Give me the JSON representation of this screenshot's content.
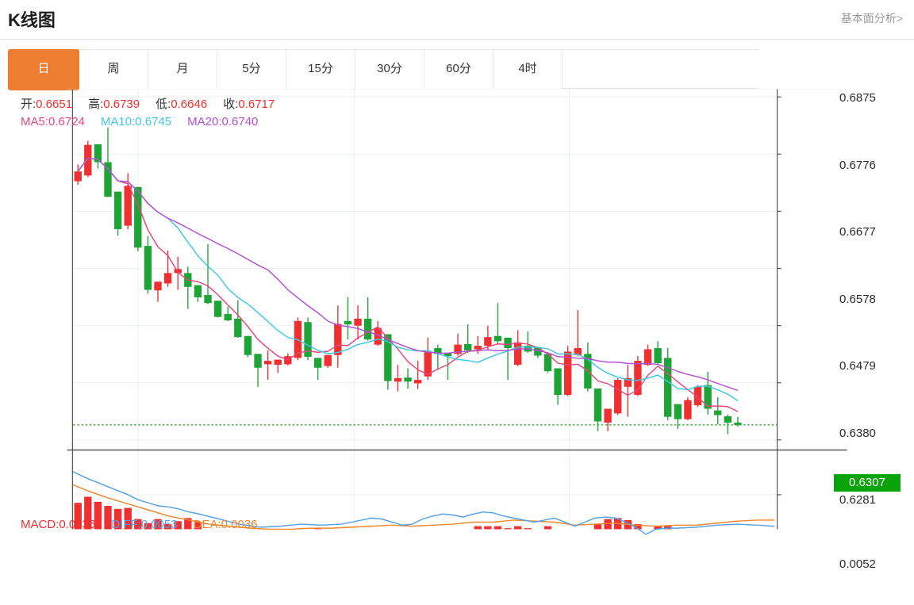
{
  "page": {
    "title": "K线图",
    "link_label": "基本面分析>"
  },
  "tabs": {
    "items": [
      "日",
      "周",
      "月",
      "5分",
      "15分",
      "30分",
      "60分",
      "4时"
    ],
    "selected_index": 0
  },
  "colors": {
    "tab_selected": "#ed7d31",
    "up_candle": "#ee3130",
    "down_candle": "#1ea436",
    "ma5": "#e9467f",
    "ma10": "#3fc8e4",
    "ma20": "#b44fd4",
    "diff_line": "#55a1e8",
    "dea_line": "#f0862d",
    "hist_bar": "#ee3130",
    "current_line": "#21a321",
    "badge_bg": "#0aa30a",
    "value_red": "#f22e2e",
    "grid": "#e9eef4",
    "frame": "#555555"
  },
  "legend": {
    "ohlc": [
      {
        "label": "开:",
        "value": "0.6651"
      },
      {
        "label": "高:",
        "value": "0.6739"
      },
      {
        "label": "低:",
        "value": "0.6646"
      },
      {
        "label": "收:",
        "value": "0.6717"
      }
    ],
    "ma": [
      {
        "label": "MA5:",
        "value": "0.6724",
        "color": "#e9467f"
      },
      {
        "label": "MA10:",
        "value": "0.6745",
        "color": "#3fc8e4"
      },
      {
        "label": "MA20:",
        "value": "0.6740",
        "color": "#b44fd4"
      }
    ],
    "macd": [
      {
        "label": "MACD:",
        "value": "0.0036",
        "color": "#f22e2e"
      },
      {
        "label": "DIFF:",
        "value": "0.0053",
        "color": "#55a1e8"
      },
      {
        "label": "DEA:",
        "value": "0.0036",
        "color": "#f0862d"
      }
    ]
  },
  "chart_data": {
    "type": "candlestick+macd",
    "main": {
      "title": "K线图 daily candlesticks with MA5/MA10/MA20 overlays",
      "y_ticks": [
        "0.6875",
        "0.6776",
        "0.6677",
        "0.6578",
        "0.6479",
        "0.6380",
        "0.6281"
      ],
      "axis_top_price": 0.6875,
      "axis_tick_step": 0.0099,
      "current_price": "0.6307",
      "ma_periods": [
        5,
        10,
        20
      ],
      "candles_ohlc": [
        [
          0.6729,
          0.6758,
          0.6723,
          0.6746
        ],
        [
          0.6739,
          0.6799,
          0.6736,
          0.6792
        ],
        [
          0.6793,
          0.6793,
          0.6751,
          0.6762
        ],
        [
          0.6762,
          0.6822,
          0.6702,
          0.6702
        ],
        [
          0.6711,
          0.6711,
          0.6635,
          0.6646
        ],
        [
          0.6652,
          0.6743,
          0.6646,
          0.6721
        ],
        [
          0.6719,
          0.6719,
          0.6608,
          0.6614
        ],
        [
          0.6617,
          0.6634,
          0.6534,
          0.6541
        ],
        [
          0.654,
          0.6555,
          0.652,
          0.6555
        ],
        [
          0.6552,
          0.6609,
          0.6546,
          0.657
        ],
        [
          0.657,
          0.6598,
          0.6541,
          0.6577
        ],
        [
          0.657,
          0.6581,
          0.6508,
          0.6546
        ],
        [
          0.6549,
          0.6549,
          0.652,
          0.6528
        ],
        [
          0.6532,
          0.662,
          0.6516,
          0.6518
        ],
        [
          0.6522,
          0.6522,
          0.6493,
          0.6494
        ],
        [
          0.6499,
          0.6512,
          0.6487,
          0.6488
        ],
        [
          0.6491,
          0.6523,
          0.6458,
          0.6459
        ],
        [
          0.6461,
          0.6461,
          0.6424,
          0.6428
        ],
        [
          0.643,
          0.643,
          0.6373,
          0.6406
        ],
        [
          0.6412,
          0.6436,
          0.6385,
          0.6418
        ],
        [
          0.6411,
          0.642,
          0.6397,
          0.642
        ],
        [
          0.6412,
          0.6431,
          0.641,
          0.6426
        ],
        [
          0.6423,
          0.6493,
          0.6419,
          0.6487
        ],
        [
          0.6485,
          0.6493,
          0.6419,
          0.6425
        ],
        [
          0.6423,
          0.6423,
          0.6385,
          0.6406
        ],
        [
          0.6409,
          0.6428,
          0.6406,
          0.6428
        ],
        [
          0.6428,
          0.6514,
          0.6406,
          0.6482
        ],
        [
          0.6487,
          0.6528,
          0.6455,
          0.6481
        ],
        [
          0.6479,
          0.6514,
          0.6455,
          0.6491
        ],
        [
          0.6491,
          0.6528,
          0.6453,
          0.6455
        ],
        [
          0.6446,
          0.6487,
          0.6444,
          0.6475
        ],
        [
          0.6464,
          0.6464,
          0.6368,
          0.6383
        ],
        [
          0.6382,
          0.6411,
          0.6365,
          0.6388
        ],
        [
          0.6389,
          0.6405,
          0.637,
          0.6382
        ],
        [
          0.6379,
          0.6418,
          0.6369,
          0.6385
        ],
        [
          0.6391,
          0.6458,
          0.6385,
          0.6434
        ],
        [
          0.644,
          0.6446,
          0.6402,
          0.643
        ],
        [
          0.6432,
          0.6432,
          0.6385,
          0.6426
        ],
        [
          0.643,
          0.6465,
          0.6427,
          0.6446
        ],
        [
          0.6447,
          0.6481,
          0.6432,
          0.6436
        ],
        [
          0.6438,
          0.6461,
          0.643,
          0.6444
        ],
        [
          0.6444,
          0.6479,
          0.6436,
          0.6459
        ],
        [
          0.6461,
          0.6518,
          0.6448,
          0.6452
        ],
        [
          0.6458,
          0.6458,
          0.6385,
          0.644
        ],
        [
          0.6411,
          0.6471,
          0.6409,
          0.645
        ],
        [
          0.6444,
          0.6469,
          0.6432,
          0.6434
        ],
        [
          0.6441,
          0.6441,
          0.6423,
          0.6427
        ],
        [
          0.643,
          0.643,
          0.6397,
          0.64
        ],
        [
          0.6405,
          0.6405,
          0.6342,
          0.6359
        ],
        [
          0.6359,
          0.6444,
          0.6357,
          0.6434
        ],
        [
          0.6428,
          0.6506,
          0.6426,
          0.644
        ],
        [
          0.643,
          0.645,
          0.6365,
          0.637
        ],
        [
          0.637,
          0.637,
          0.6296,
          0.6313
        ],
        [
          0.6311,
          0.6335,
          0.6296,
          0.6335
        ],
        [
          0.6327,
          0.6388,
          0.6324,
          0.6385
        ],
        [
          0.6373,
          0.6411,
          0.6321,
          0.6388
        ],
        [
          0.6359,
          0.6426,
          0.6357,
          0.6418
        ],
        [
          0.6411,
          0.6446,
          0.6409,
          0.6438
        ],
        [
          0.644,
          0.6452,
          0.6412,
          0.6414
        ],
        [
          0.6423,
          0.644,
          0.6315,
          0.6321
        ],
        [
          0.6343,
          0.6343,
          0.63,
          0.6317
        ],
        [
          0.6317,
          0.6355,
          0.6315,
          0.635
        ],
        [
          0.6341,
          0.6376,
          0.6338,
          0.6373
        ],
        [
          0.6376,
          0.6399,
          0.6325,
          0.6335
        ],
        [
          0.6332,
          0.6355,
          0.6308,
          0.6324
        ],
        [
          0.6322,
          0.6325,
          0.6291,
          0.6311
        ],
        [
          0.6311,
          0.6321,
          0.6304,
          0.6307
        ]
      ]
    },
    "macd": {
      "y_tick": "0.0052",
      "hist": [
        [
          0,
          0.0044
        ],
        [
          1,
          0.005
        ],
        [
          2,
          0.0045
        ],
        [
          3,
          0.0041
        ],
        [
          4,
          0.0038
        ],
        [
          5,
          0.0039
        ],
        [
          6,
          0.0028
        ],
        [
          7,
          0.0024
        ],
        [
          8,
          0.0028
        ],
        [
          9,
          0.0023
        ],
        [
          10,
          0.0026
        ],
        [
          11,
          0.0029
        ],
        [
          12,
          0.0025
        ],
        [
          24,
          0.0019
        ],
        [
          40,
          0.0021
        ],
        [
          41,
          0.0021
        ],
        [
          42,
          0.0021
        ],
        [
          43,
          0.0019
        ],
        [
          44,
          0.0021
        ],
        [
          45,
          0.0019
        ],
        [
          47,
          0.0021
        ],
        [
          52,
          0.0023
        ],
        [
          53,
          0.0028
        ],
        [
          54,
          0.0029
        ],
        [
          55,
          0.0027
        ],
        [
          56,
          0.0023
        ],
        [
          58,
          0.0021
        ],
        [
          59,
          0.0021
        ]
      ],
      "diff": [
        [
          8,
          0.0075
        ],
        [
          30,
          0.0068
        ],
        [
          60,
          0.006
        ],
        [
          90,
          0.0052
        ],
        [
          105,
          0.0047
        ],
        [
          120,
          0.0044
        ],
        [
          135,
          0.0041
        ],
        [
          150,
          0.004
        ],
        [
          165,
          0.0038
        ],
        [
          180,
          0.0035
        ],
        [
          195,
          0.0033
        ],
        [
          225,
          0.0028
        ],
        [
          255,
          0.0023
        ],
        [
          285,
          0.002
        ],
        [
          315,
          0.0021
        ],
        [
          345,
          0.0023
        ],
        [
          375,
          0.0022
        ],
        [
          405,
          0.0023
        ],
        [
          435,
          0.0027
        ],
        [
          450,
          0.0029
        ],
        [
          465,
          0.0028
        ],
        [
          480,
          0.0025
        ],
        [
          495,
          0.0022
        ],
        [
          510,
          0.0023
        ],
        [
          525,
          0.0028
        ],
        [
          540,
          0.0031
        ],
        [
          555,
          0.0033
        ],
        [
          570,
          0.0032
        ],
        [
          585,
          0.003
        ],
        [
          600,
          0.0033
        ],
        [
          615,
          0.0035
        ],
        [
          630,
          0.0034
        ],
        [
          645,
          0.0031
        ],
        [
          660,
          0.0029
        ],
        [
          675,
          0.0027
        ],
        [
          690,
          0.0025
        ],
        [
          705,
          0.0027
        ],
        [
          720,
          0.0029
        ],
        [
          735,
          0.0025
        ],
        [
          750,
          0.0021
        ],
        [
          765,
          0.0025
        ],
        [
          780,
          0.0029
        ],
        [
          795,
          0.003
        ],
        [
          810,
          0.0029
        ],
        [
          825,
          0.0025
        ],
        [
          840,
          0.002
        ],
        [
          855,
          0.0013
        ],
        [
          870,
          0.0018
        ],
        [
          885,
          0.0019
        ],
        [
          900,
          0.0019
        ],
        [
          930,
          0.002
        ],
        [
          960,
          0.0022
        ],
        [
          990,
          0.0023
        ],
        [
          1020,
          0.0022
        ],
        [
          1045,
          0.0021
        ]
      ],
      "dea": [
        [
          8,
          0.0062
        ],
        [
          30,
          0.0056
        ],
        [
          60,
          0.0049
        ],
        [
          90,
          0.0043
        ],
        [
          120,
          0.0037
        ],
        [
          150,
          0.0031
        ],
        [
          180,
          0.0027
        ],
        [
          210,
          0.0023
        ],
        [
          240,
          0.0021
        ],
        [
          270,
          0.0019
        ],
        [
          300,
          0.0018
        ],
        [
          330,
          0.0018
        ],
        [
          360,
          0.0019
        ],
        [
          390,
          0.0019
        ],
        [
          420,
          0.002
        ],
        [
          450,
          0.0021
        ],
        [
          480,
          0.0022
        ],
        [
          510,
          0.0021
        ],
        [
          540,
          0.0022
        ],
        [
          570,
          0.0023
        ],
        [
          600,
          0.0025
        ],
        [
          630,
          0.0025
        ],
        [
          660,
          0.0027
        ],
        [
          690,
          0.0026
        ],
        [
          720,
          0.0025
        ],
        [
          750,
          0.0022
        ],
        [
          780,
          0.0023
        ],
        [
          810,
          0.0024
        ],
        [
          840,
          0.0022
        ],
        [
          870,
          0.0021
        ],
        [
          900,
          0.0022
        ],
        [
          930,
          0.0022
        ],
        [
          960,
          0.0024
        ],
        [
          990,
          0.0026
        ],
        [
          1020,
          0.0027
        ],
        [
          1045,
          0.0027
        ]
      ]
    }
  }
}
